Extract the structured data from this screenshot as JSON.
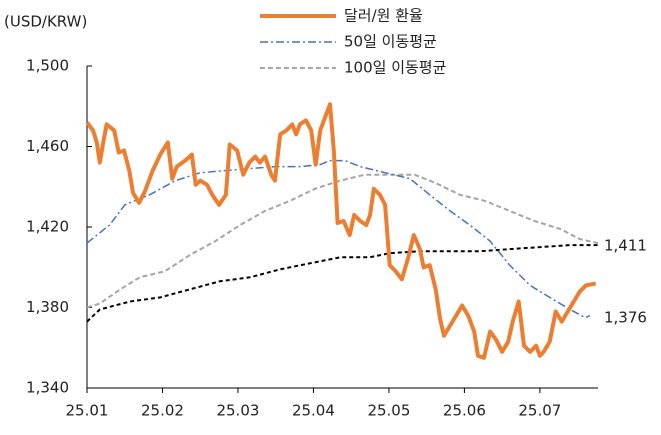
{
  "chart_data": {
    "type": "line",
    "y_label": "(USD/KRW)",
    "xlim": [
      0,
      6.77
    ],
    "xticks": [
      {
        "value": 0,
        "label": "25.01"
      },
      {
        "value": 1,
        "label": "25.02"
      },
      {
        "value": 2,
        "label": "25.03"
      },
      {
        "value": 3,
        "label": "25.04"
      },
      {
        "value": 4,
        "label": "25.05"
      },
      {
        "value": 5,
        "label": "25.06"
      },
      {
        "value": 6,
        "label": "25.07"
      }
    ],
    "ylim": [
      1340,
      1500
    ],
    "yticks": [
      {
        "value": 1340,
        "label": "1,340"
      },
      {
        "value": 1380,
        "label": "1,380"
      },
      {
        "value": 1420,
        "label": "1,420"
      },
      {
        "value": 1460,
        "label": "1,460"
      },
      {
        "value": 1500,
        "label": "1,500"
      }
    ],
    "grid": false,
    "series": [
      {
        "name": "달러/원 환율",
        "color": "#ED7D31",
        "width": 4,
        "dash": "none",
        "x": [
          0,
          0.08,
          0.13,
          0.17,
          0.21,
          0.26,
          0.36,
          0.42,
          0.49,
          0.56,
          0.61,
          0.69,
          0.77,
          0.87,
          0.97,
          1.07,
          1.13,
          1.19,
          1.3,
          1.39,
          1.44,
          1.5,
          1.59,
          1.66,
          1.75,
          1.84,
          1.89,
          1.99,
          2.07,
          2.15,
          2.23,
          2.29,
          2.36,
          2.44,
          2.49,
          2.56,
          2.64,
          2.72,
          2.77,
          2.82,
          2.9,
          2.97,
          3.03,
          3.09,
          3.14,
          3.22,
          3.27,
          3.32,
          3.4,
          3.48,
          3.54,
          3.62,
          3.7,
          3.75,
          3.8,
          3.88,
          3.95,
          4.01,
          4.09,
          4.17,
          4.25,
          4.33,
          4.41,
          4.46,
          4.54,
          4.62,
          4.68,
          4.73,
          4.81,
          4.89,
          4.97,
          5.05,
          5.13,
          5.18,
          5.26,
          5.34,
          5.42,
          5.5,
          5.58,
          5.64,
          5.72,
          5.79,
          5.87,
          5.95,
          6.0,
          6.05,
          6.13,
          6.21,
          6.29,
          6.37,
          6.45,
          6.53,
          6.61,
          6.74
        ],
        "values": [
          1472,
          1468,
          1462,
          1452,
          1461,
          1471,
          1468,
          1457,
          1458,
          1448,
          1437,
          1432,
          1438,
          1448,
          1456,
          1462,
          1444,
          1450,
          1453,
          1456,
          1441,
          1443,
          1441,
          1436,
          1431,
          1436,
          1461,
          1458,
          1446,
          1452,
          1455,
          1452,
          1455,
          1446,
          1443,
          1466,
          1468,
          1471,
          1466,
          1471,
          1473,
          1468,
          1451,
          1468,
          1473,
          1481,
          1458,
          1422,
          1423,
          1416,
          1426,
          1423,
          1421,
          1426,
          1439,
          1436,
          1431,
          1401,
          1398,
          1394,
          1404,
          1416,
          1409,
          1400,
          1401,
          1389,
          1374,
          1366,
          1371,
          1376,
          1381,
          1376,
          1368,
          1356,
          1355,
          1368,
          1364,
          1358,
          1363,
          1373,
          1383,
          1361,
          1358,
          1361,
          1356,
          1358,
          1363,
          1378,
          1373,
          1378,
          1383,
          1388,
          1391,
          1392
        ]
      },
      {
        "name": "50일 이동평균",
        "color": "#4472C4",
        "width": 1.5,
        "dash": "8,3,2,3",
        "x": [
          0,
          0.3,
          0.5,
          0.83,
          1.17,
          1.5,
          1.83,
          2.16,
          2.49,
          2.82,
          3.09,
          3.22,
          3.42,
          3.62,
          3.95,
          4.28,
          4.54,
          4.81,
          5.07,
          5.34,
          5.6,
          5.87,
          6.13,
          6.4,
          6.6,
          6.66
        ],
        "values": [
          1412,
          1421,
          1431,
          1436,
          1443,
          1447,
          1448,
          1449,
          1450,
          1450,
          1451,
          1453,
          1453,
          1450,
          1447,
          1444,
          1436,
          1428,
          1421,
          1413,
          1401,
          1391,
          1385,
          1379,
          1375,
          1376
        ]
      },
      {
        "name": "100일 이동평균",
        "color": "#A5A5A5",
        "width": 2,
        "dash": "5,3",
        "x": [
          0,
          0.17,
          0.44,
          0.7,
          1.03,
          1.36,
          1.7,
          2.03,
          2.36,
          2.69,
          3.02,
          3.35,
          3.68,
          4.01,
          4.34,
          4.61,
          4.94,
          5.27,
          5.6,
          5.93,
          6.27,
          6.53,
          6.77
        ],
        "values": [
          1380,
          1382,
          1389,
          1395,
          1398,
          1406,
          1413,
          1421,
          1428,
          1433,
          1439,
          1443,
          1446,
          1446,
          1446,
          1442,
          1436,
          1433,
          1428,
          1423,
          1419,
          1414,
          1412
        ]
      },
      {
        "color": "#000000",
        "width": 2,
        "dash": "4,3",
        "x": [
          0,
          0.17,
          0.57,
          0.97,
          1.36,
          1.76,
          2.16,
          2.56,
          2.96,
          3.36,
          3.75,
          4.01,
          4.41,
          4.81,
          5.21,
          5.6,
          6.0,
          6.4,
          6.77
        ],
        "values": [
          1373,
          1379,
          1383,
          1385,
          1389,
          1393,
          1395,
          1399,
          1402,
          1405,
          1405,
          1407,
          1408,
          1408,
          1408,
          1409,
          1410,
          1411,
          1411
        ]
      }
    ],
    "annotations": [
      "1,411",
      "1,376"
    ]
  }
}
